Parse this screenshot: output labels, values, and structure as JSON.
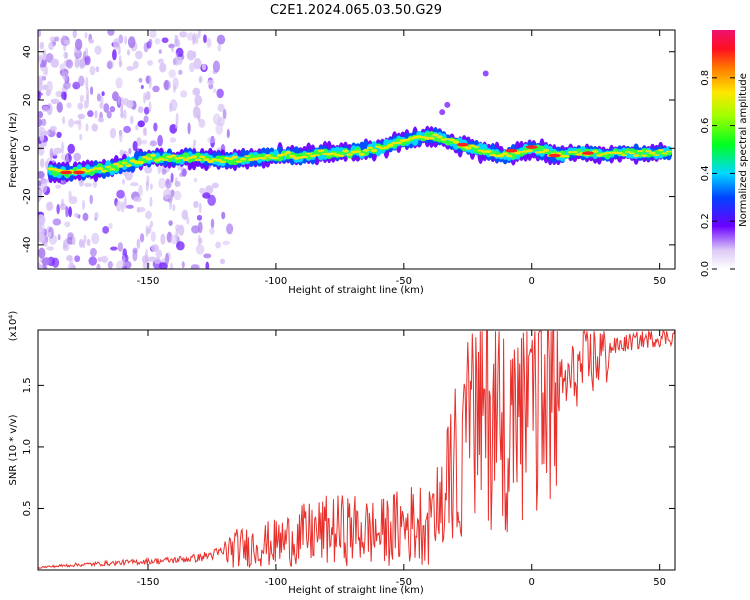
{
  "figure": {
    "title": "C2E1.2024.065.03.50.G29"
  },
  "chart_data": [
    {
      "type": "heatmap",
      "xlabel": "Height of straight line (km)",
      "ylabel": "Frequency (Hz)",
      "xlim": [
        -193,
        56
      ],
      "ylim": [
        -50,
        49
      ],
      "xticks": [
        -150,
        -100,
        -50,
        0,
        50
      ],
      "yticks": [
        -40,
        -20,
        0,
        20,
        40
      ],
      "colorbar": {
        "label": "Normalized spectral amplitude",
        "range": [
          0.0,
          1.0
        ],
        "ticks": [
          0.0,
          0.2,
          0.4,
          0.6,
          0.8
        ],
        "tick_labels": [
          "0.0",
          "0.2",
          "0.4",
          "0.6",
          "0.8"
        ]
      },
      "ridge": {
        "x": [
          -193,
          -180,
          -170,
          -160,
          -150,
          -140,
          -130,
          -120,
          -110,
          -100,
          -90,
          -80,
          -70,
          -60,
          -50,
          -45,
          -40,
          -35,
          -30,
          -25,
          -20,
          -15,
          -10,
          -5,
          0,
          5,
          10,
          15,
          20,
          30,
          40,
          50,
          56
        ],
        "frequency_hz": [
          -9,
          -10,
          -9,
          -7,
          -4,
          -4,
          -4,
          -5,
          -4,
          -3,
          -3,
          -2,
          -2,
          0,
          3,
          4,
          5,
          4,
          2,
          1,
          -1,
          -2,
          -3,
          -2,
          0,
          -1,
          -3,
          -2,
          -2,
          -2,
          -2,
          -2,
          -2
        ]
      }
    },
    {
      "type": "line",
      "xlabel": "Height of straight line (km)",
      "ylabel": "SNR (10 * v/v)",
      "y_multiplier": "(x10⁴)",
      "xlim": [
        -193,
        56
      ],
      "ylim": [
        0,
        19500
      ],
      "xticks": [
        -150,
        -100,
        -50,
        0,
        50
      ],
      "yticks": [
        5000,
        10000,
        15000
      ],
      "ytick_labels": [
        "0.5",
        "1.0",
        "1.5"
      ],
      "color": "#e8302c",
      "series": [
        {
          "x": [
            -193,
            -180,
            -170,
            -160,
            -150,
            -140,
            -130,
            -120,
            -115,
            -110,
            -100,
            -90,
            -80,
            -70,
            -60,
            -50,
            -40,
            -35,
            -30,
            -25,
            -20,
            -15,
            -10,
            -5,
            0,
            5,
            10,
            15,
            20,
            30,
            40,
            50,
            56
          ],
          "values": [
            200,
            400,
            500,
            600,
            700,
            800,
            1000,
            1500,
            1800,
            1900,
            2200,
            2800,
            3200,
            3300,
            3000,
            3600,
            4000,
            5500,
            8500,
            11000,
            13000,
            12500,
            12000,
            11000,
            12500,
            13500,
            14500,
            15500,
            16500,
            18000,
            18600,
            18900,
            19000
          ]
        }
      ]
    }
  ]
}
